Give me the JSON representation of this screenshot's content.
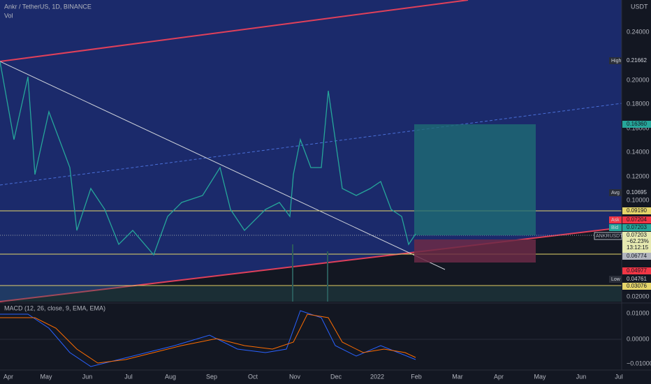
{
  "header": {
    "symbol": "Ankr / TetherUS, 1D, BINANCE",
    "volume": "Vol"
  },
  "price_axis": {
    "currency": "USDT",
    "labels": [
      "0.24000",
      "0.20000",
      "0.18000",
      "0.16000",
      "0.14000",
      "0.12000",
      "0.10000",
      "0.02000"
    ]
  },
  "badges": [
    {
      "tag": "High",
      "value": "0.21662"
    },
    {
      "tag": null,
      "value": "0.16360"
    },
    {
      "tag": "Avg",
      "value": "0.10695"
    },
    {
      "tag": null,
      "value": "0.09190"
    },
    {
      "tag": "Ask",
      "value": "0.07204"
    },
    {
      "tag": "Bid",
      "value": "0.07203"
    },
    {
      "tag": null,
      "value": "0.06774"
    },
    {
      "tag": null,
      "value": "0.04977"
    },
    {
      "tag": "Low",
      "value": "0.04761"
    },
    {
      "tag": null,
      "value": "0.03076"
    }
  ],
  "last": {
    "price": "0.07203",
    "change": "−62.23%",
    "countdown": "13:12:15",
    "symbol": "ANKRUSDT"
  },
  "macd": {
    "title": "MACD (12, 26, close, 9, EMA, EMA)",
    "labels": [
      "0.01000",
      "0.00000",
      "−0.01000"
    ]
  },
  "time_axis": [
    "Apr",
    "May",
    "Jun",
    "Jul",
    "Aug",
    "Sep",
    "Oct",
    "Nov",
    "Dec",
    "2022",
    "Feb",
    "Mar",
    "Apr",
    "May",
    "Jun",
    "Jul"
  ]
}
